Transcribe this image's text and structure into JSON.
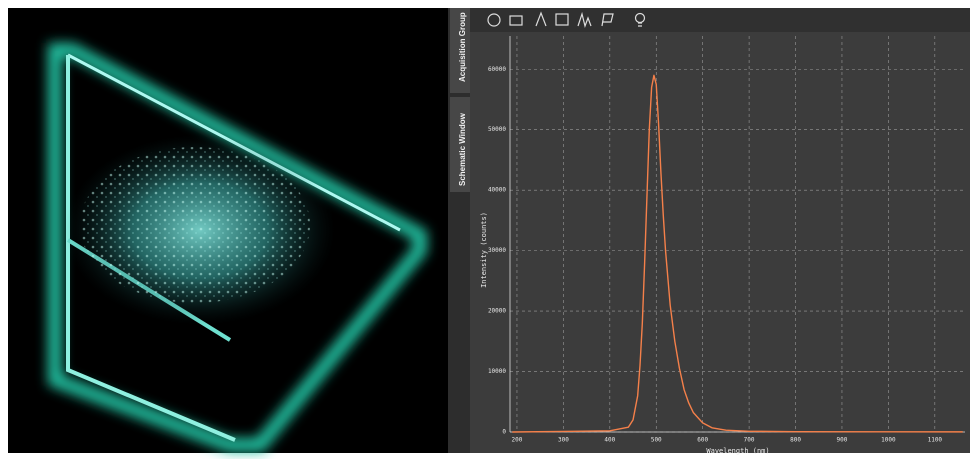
{
  "sidebar_tabs": [
    "Acquisition Group",
    "Schematic Window"
  ],
  "chart_data": {
    "type": "line",
    "x_label": "Wavelength (nm)",
    "y_label": "Intensity (counts)",
    "x": [
      190,
      300,
      400,
      440,
      450,
      460,
      465,
      470,
      475,
      480,
      485,
      490,
      495,
      500,
      505,
      510,
      515,
      520,
      530,
      540,
      550,
      560,
      570,
      580,
      600,
      620,
      650,
      700,
      800,
      1000,
      1160
    ],
    "series": [
      {
        "color": "#f5804a",
        "values": [
          0,
          100,
          200,
          800,
          2000,
          6000,
          11000,
          18000,
          28000,
          39000,
          50000,
          57000,
          59000,
          57500,
          51000,
          43000,
          36000,
          30000,
          21000,
          15000,
          10500,
          7000,
          4800,
          3200,
          1500,
          700,
          300,
          120,
          60,
          30,
          20
        ]
      }
    ],
    "xlim": [
      185,
      1165
    ],
    "ylim": [
      0,
      65500
    ],
    "xticks": [
      200,
      300,
      400,
      500,
      600,
      700,
      800,
      900,
      1000,
      1100
    ],
    "yticks": [
      0,
      10000,
      20000,
      30000,
      40000,
      50000,
      60000
    ],
    "grid": true
  }
}
